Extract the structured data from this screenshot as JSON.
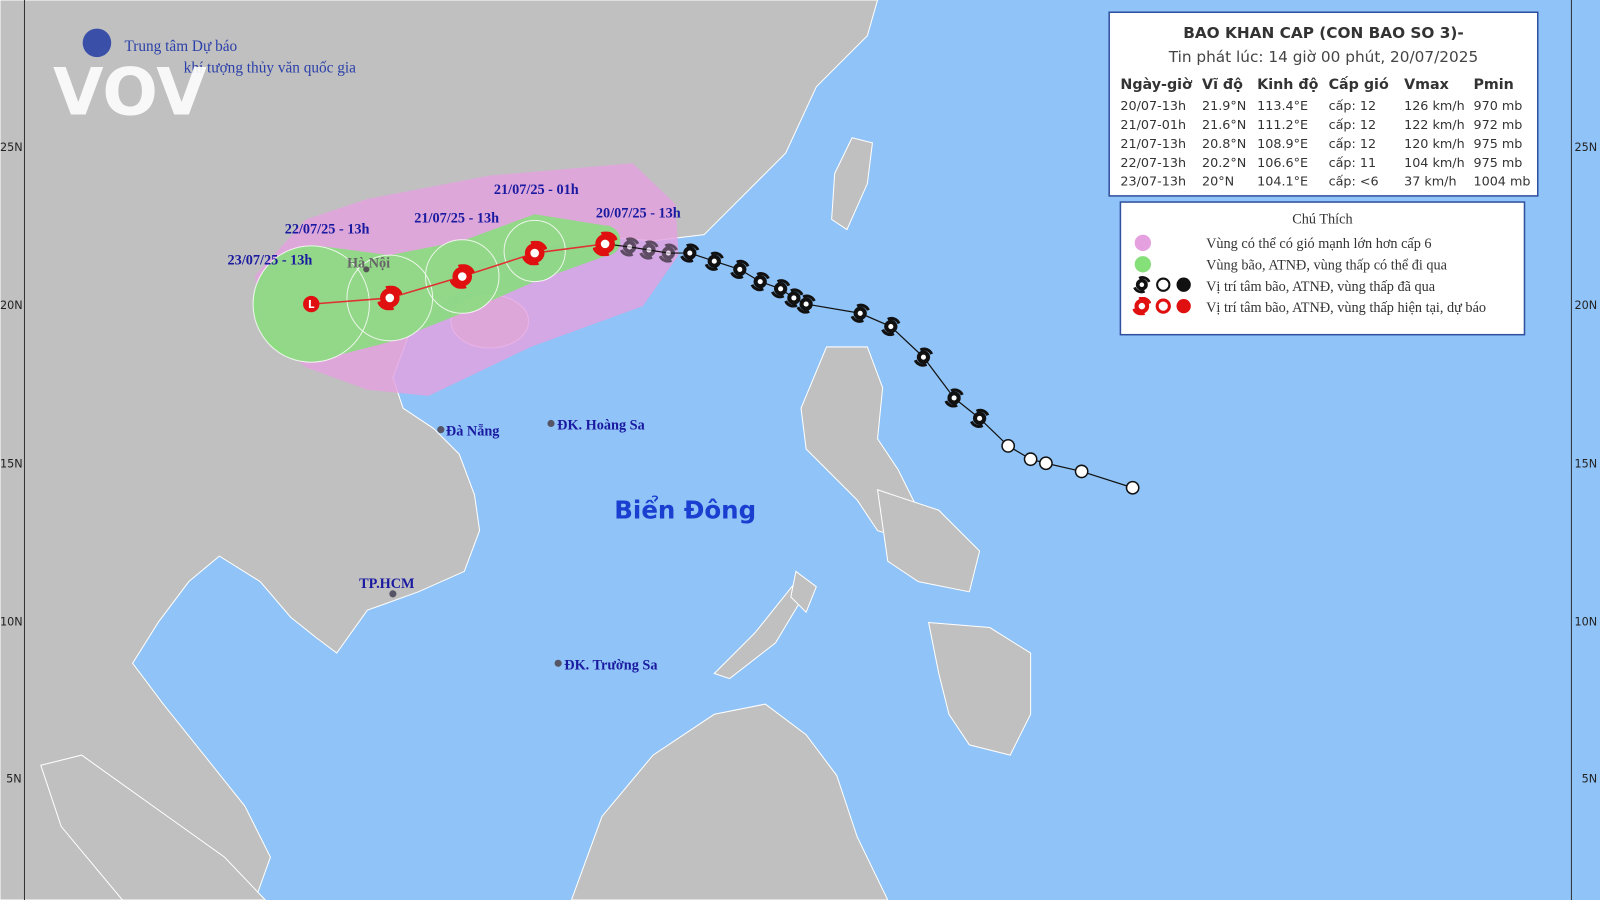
{
  "logo": {
    "name": "VOV",
    "line1": "Trung tâm Dự báo",
    "line2": "khí tượng thủy văn quốc gia"
  },
  "lat_labels": [
    "25N",
    "20N",
    "15N",
    "10N",
    "5N"
  ],
  "bulletin": {
    "title": "BAO KHAN CAP (CON BAO SO 3)-",
    "issued": "Tin phát lúc: 14 giờ 00 phút, 20/07/2025",
    "columns": [
      "Ngày-giờ",
      "Vĩ độ",
      "Kinh độ",
      "Cấp gió",
      "Vmax",
      "Pmin"
    ],
    "rows": [
      [
        "20/07-13h",
        "21.9°N",
        "113.4°E",
        "cấp: 12",
        "126 km/h",
        "970 mb"
      ],
      [
        "21/07-01h",
        "21.6°N",
        "111.2°E",
        "cấp: 12",
        "122 km/h",
        "972 mb"
      ],
      [
        "21/07-13h",
        "20.8°N",
        "108.9°E",
        "cấp: 12",
        "120 km/h",
        "975 mb"
      ],
      [
        "22/07-13h",
        "20.2°N",
        "106.6°E",
        "cấp: 11",
        "104 km/h",
        "975 mb"
      ],
      [
        "23/07-13h",
        "20°N",
        "104.1°E",
        "cấp: <6",
        "37 km/h",
        "1004 mb"
      ]
    ]
  },
  "legend": {
    "title": "Chú Thích",
    "items": [
      "Vùng có thể có gió mạnh lớn hơn cấp 6",
      "Vùng bão, ATNĐ, vùng thấp có thể đi qua",
      "Vị trí tâm bão, ATNĐ, vùng thấp đã qua",
      "Vị trí tâm bão, ATNĐ, vùng thấp hiện tại, dự báo"
    ]
  },
  "track_labels": [
    "21/07/25 - 01h",
    "22/07/25 - 13h",
    "21/07/25 - 13h",
    "20/07/25 - 13h",
    "23/07/25 - 13h"
  ],
  "places": [
    "Hà Nội",
    "Đà Nẵng",
    "ĐK. Hoàng Sa",
    "Biển Đông",
    "TP.HCM",
    "ĐK. Trường Sa"
  ]
}
